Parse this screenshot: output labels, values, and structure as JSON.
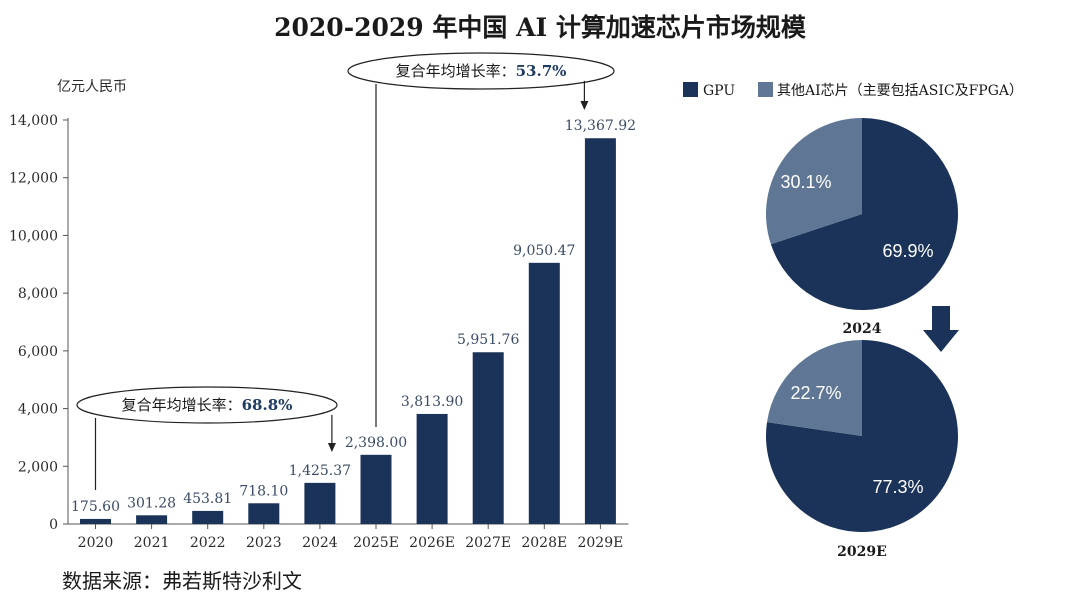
{
  "title": "2020-2029 年中国 AI 计算加速芯片市场规模",
  "source": "数据来源：弗若斯特沙利文",
  "colors": {
    "gpu": "#1b3358",
    "other": "#5f7794",
    "bar": "#1b3358"
  },
  "chart_data": [
    {
      "type": "bar",
      "ylabel": "亿元人民币",
      "ylim": [
        0,
        14000
      ],
      "yticks": [
        0,
        2000,
        4000,
        6000,
        8000,
        10000,
        12000,
        14000
      ],
      "ytick_labels": [
        "0",
        "2,000",
        "4,000",
        "6,000",
        "8,000",
        "10,000",
        "12,000",
        "14,000"
      ],
      "categories": [
        "2020",
        "2021",
        "2022",
        "2023",
        "2024",
        "2025E",
        "2026E",
        "2027E",
        "2028E",
        "2029E"
      ],
      "values": [
        175.6,
        301.28,
        453.81,
        718.1,
        1425.37,
        2398.0,
        3813.9,
        5951.76,
        9050.47,
        13367.92
      ],
      "value_labels": [
        "175.60",
        "301.28",
        "453.81",
        "718.10",
        "1,425.37",
        "2,398.00",
        "3,813.90",
        "5,951.76",
        "9,050.47",
        "13,367.92"
      ],
      "annotations": [
        {
          "label": "复合年均增长率：",
          "value": "68.8%",
          "from": "2020",
          "to": "2024"
        },
        {
          "label": "复合年均增长率：",
          "value": "53.7%",
          "from": "2025E",
          "to": "2029E"
        }
      ]
    },
    {
      "type": "pie",
      "caption": "2024",
      "labels": [
        "GPU",
        "其他AI芯片（主要包括ASIC及FPGA）"
      ],
      "values": [
        69.9,
        30.1
      ],
      "value_labels": [
        "69.9%",
        "30.1%"
      ]
    },
    {
      "type": "pie",
      "caption": "2029E",
      "labels": [
        "GPU",
        "其他AI芯片（主要包括ASIC及FPGA）"
      ],
      "values": [
        77.3,
        22.7
      ],
      "value_labels": [
        "77.3%",
        "22.7%"
      ]
    }
  ],
  "legend": [
    "GPU",
    "其他AI芯片（主要包括ASIC及FPGA）"
  ]
}
